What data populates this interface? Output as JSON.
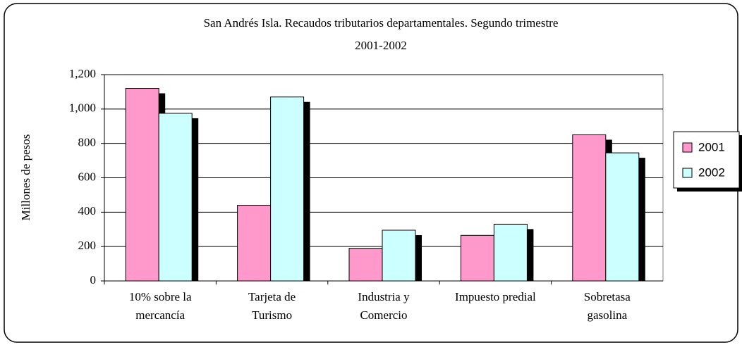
{
  "chart_data": {
    "type": "bar",
    "title": [
      "San Andrés Isla. Recaudos tributarios departamentales. Segundo trimestre",
      "2001-2002"
    ],
    "ylabel": "Millones de pesos",
    "categories": [
      [
        "10% sobre la",
        "mercancía"
      ],
      [
        "Tarjeta de",
        "Turismo"
      ],
      [
        "Industria y",
        "Comercio"
      ],
      [
        "Impuesto predial"
      ],
      [
        "Sobretasa",
        "gasolina"
      ]
    ],
    "series": [
      {
        "name": "2001",
        "color": "#ff99cc",
        "values": [
          1120,
          440,
          190,
          265,
          850
        ]
      },
      {
        "name": "2002",
        "color": "#ccffff",
        "values": [
          975,
          1070,
          295,
          330,
          745
        ]
      }
    ],
    "ylim": [
      0,
      1200
    ],
    "yticks": [
      0,
      200,
      400,
      600,
      800,
      {
        "value": 1000,
        "label": "1,000"
      },
      {
        "value": 1200,
        "label": "1,200"
      }
    ],
    "grid": true,
    "legend": "right"
  }
}
